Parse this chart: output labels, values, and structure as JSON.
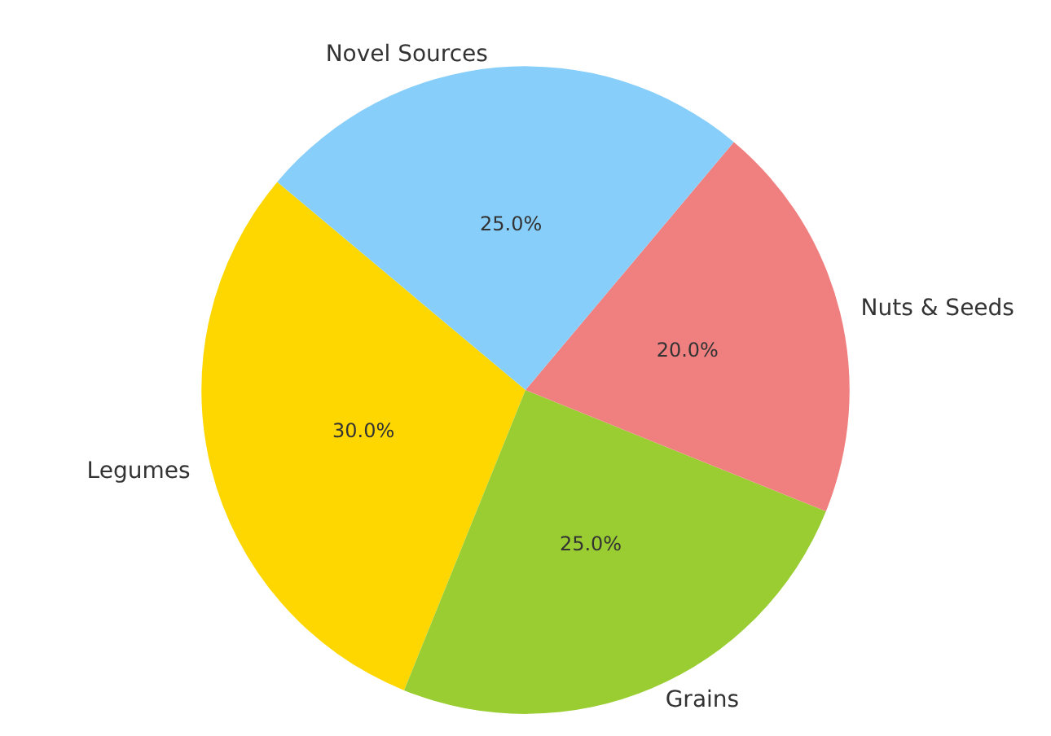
{
  "chart_data": {
    "type": "pie",
    "categories": [
      "Legumes",
      "Grains",
      "Nuts & Seeds",
      "Novel Sources"
    ],
    "values": [
      30,
      25,
      20,
      25
    ],
    "colors": [
      "#ffd700",
      "#9acd32",
      "#f08080",
      "#87cefa"
    ],
    "value_labels": [
      "30.0%",
      "25.0%",
      "20.0%",
      "25.0%"
    ],
    "legend": false
  }
}
